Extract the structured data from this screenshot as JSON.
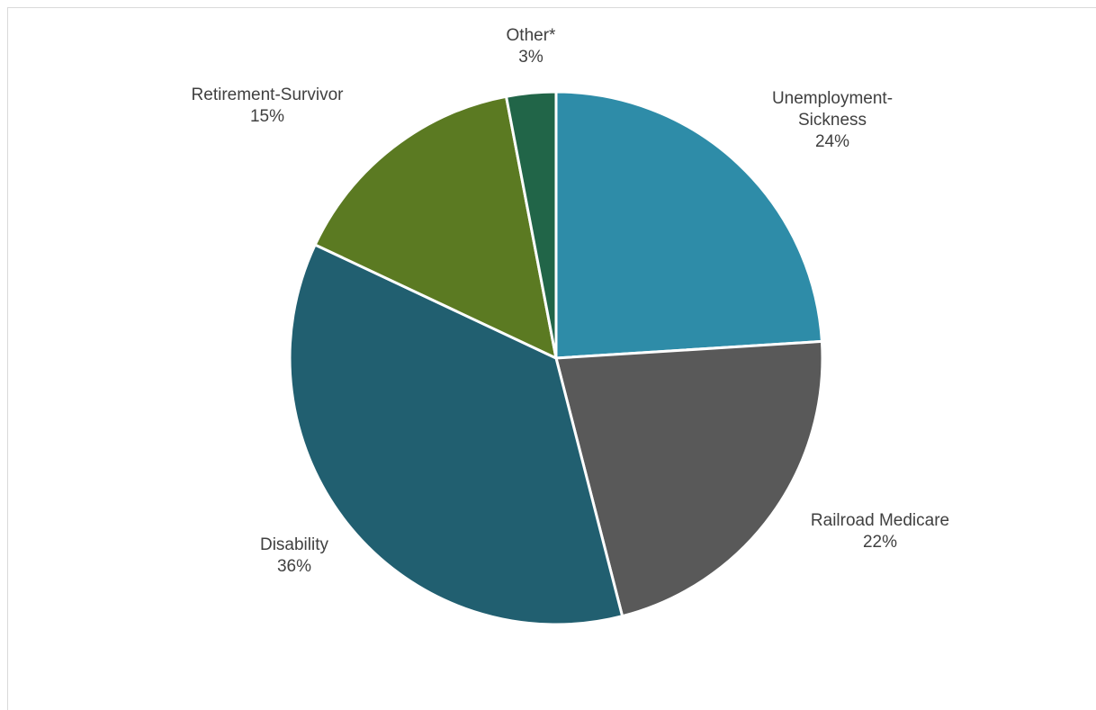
{
  "chart_data": {
    "type": "pie",
    "categories": [
      "Unemployment-Sickness",
      "Railroad Medicare",
      "Disability",
      "Retirement-Survivor",
      "Other*"
    ],
    "values": [
      24,
      22,
      36,
      15,
      3
    ],
    "value_labels": [
      "24%",
      "22%",
      "36%",
      "15%",
      "3%"
    ],
    "label_lines": [
      [
        "Unemployment-",
        "Sickness"
      ],
      [
        "Railroad Medicare"
      ],
      [
        "Disability"
      ],
      [
        "Retirement-Survivor"
      ],
      [
        "Other*"
      ]
    ],
    "colors": [
      "#2e8ca8",
      "#595959",
      "#215f70",
      "#5b7a22",
      "#216548"
    ],
    "start_angle": "12 o'clock",
    "direction": "clockwise",
    "legend": "none",
    "data_labels": "outside"
  }
}
